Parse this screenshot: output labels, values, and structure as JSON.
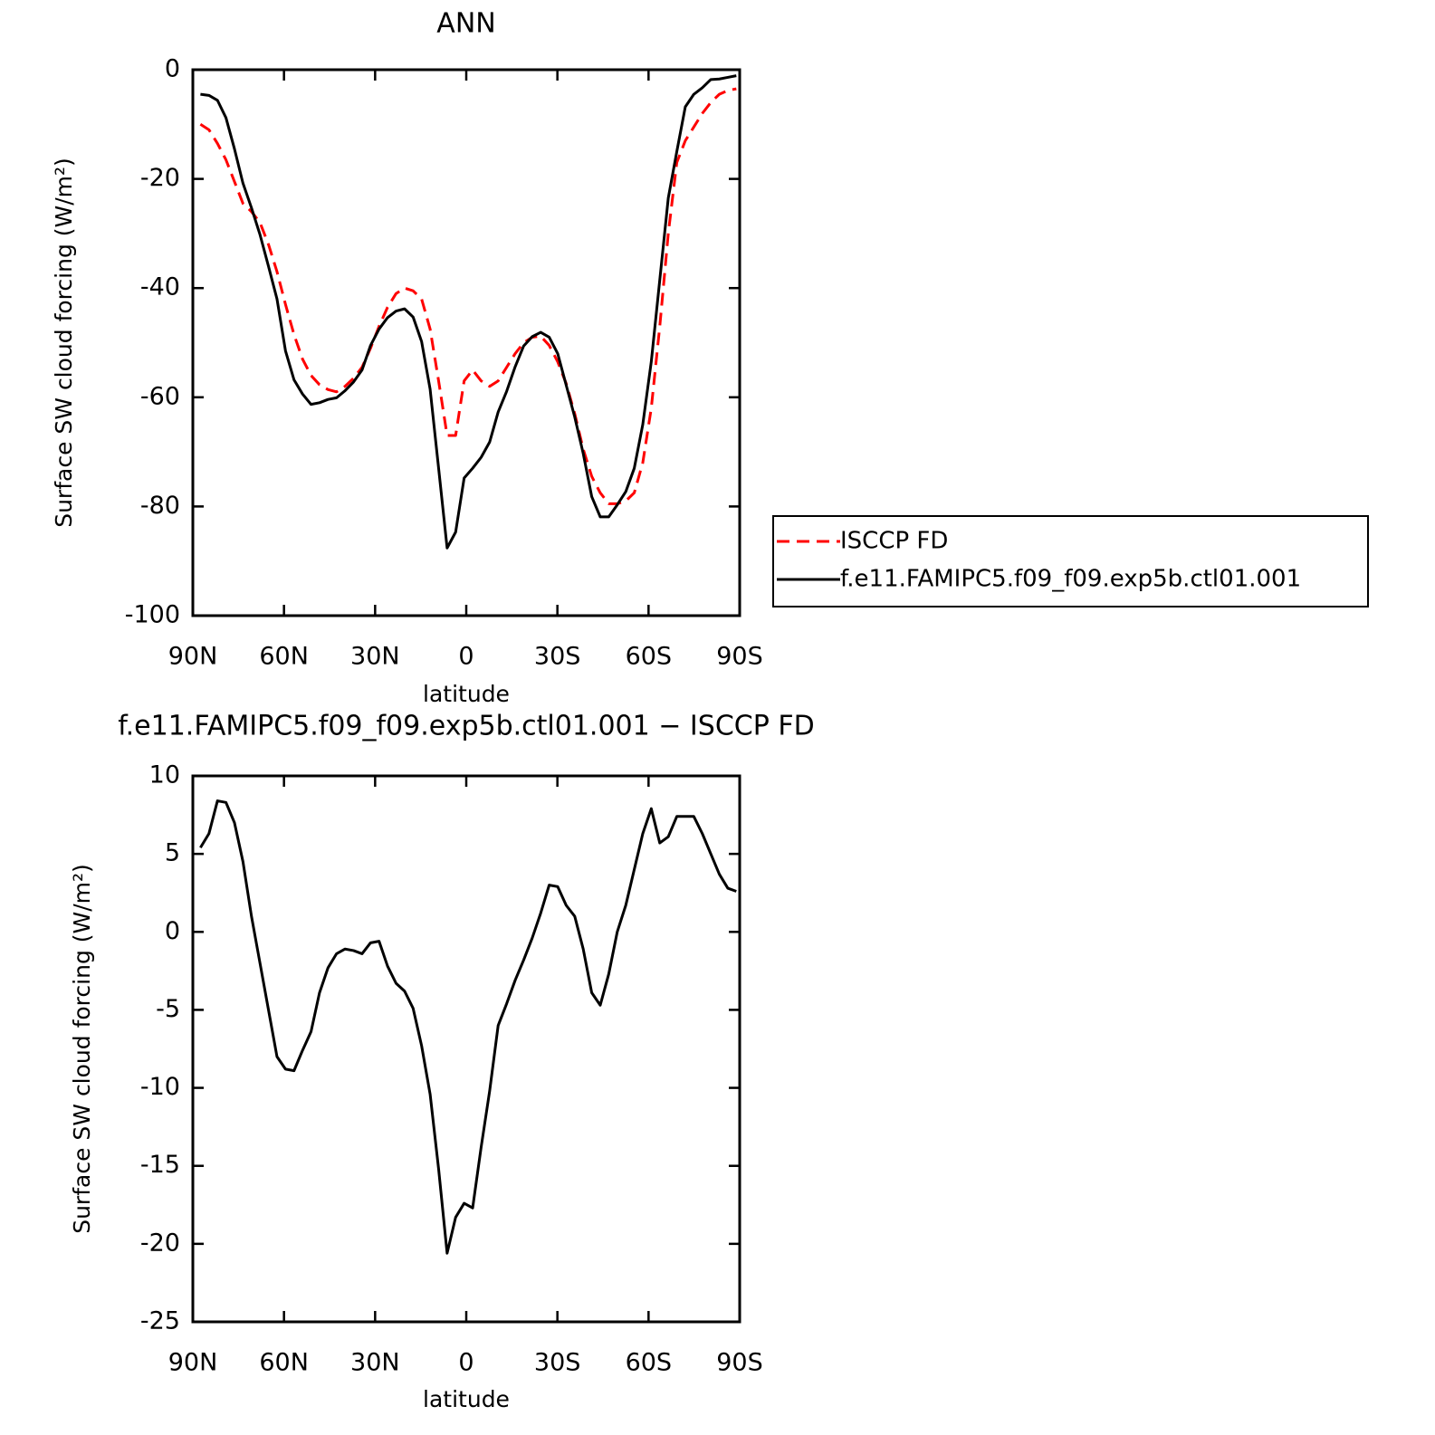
{
  "chart_data": [
    {
      "type": "line",
      "title": "ANN",
      "xlabel": "latitude",
      "ylabel": "Surface SW cloud forcing (W/m²)",
      "xlim": [
        90,
        -90
      ],
      "ylim": [
        0,
        -100
      ],
      "xticks": [
        {
          "value": 90,
          "label": "90N"
        },
        {
          "value": 60,
          "label": "60N"
        },
        {
          "value": 30,
          "label": "30N"
        },
        0,
        {
          "value": -30,
          "label": "30S"
        },
        {
          "value": -60,
          "label": "60S"
        },
        {
          "value": -90,
          "label": "90S"
        }
      ],
      "yticks": [
        0,
        -20,
        -40,
        -60,
        -80,
        -100
      ],
      "legend": "right",
      "x": [
        87.5,
        84.7,
        81.9,
        79.1,
        76.3,
        73.5,
        70.7,
        67.9,
        65.1,
        62.3,
        59.5,
        56.7,
        53.9,
        51.1,
        48.3,
        45.5,
        42.7,
        39.9,
        37.1,
        34.3,
        31.5,
        28.7,
        25.9,
        23.1,
        20.3,
        17.5,
        14.7,
        11.9,
        9.1,
        6.3,
        3.5,
        0.7,
        -2.1,
        -4.9,
        -7.7,
        -10.5,
        -13.3,
        -16.1,
        -18.9,
        -21.7,
        -24.5,
        -27.3,
        -30.1,
        -32.9,
        -35.7,
        -38.5,
        -41.3,
        -44.1,
        -46.9,
        -49.7,
        -52.5,
        -55.3,
        -58.1,
        -60.9,
        -63.7,
        -66.5,
        -69.3,
        -72.1,
        -74.9,
        -77.7,
        -80.5,
        -83.3,
        -86.1,
        -88.9
      ],
      "series": [
        {
          "name": "ISCCP FD",
          "color": "#ff0000",
          "dashed": true,
          "values": [
            -10,
            -11,
            -13.5,
            -16.5,
            -20.5,
            -24.5,
            -26,
            -28,
            -32,
            -37,
            -43,
            -48.5,
            -53,
            -56,
            -57.7,
            -58.6,
            -59,
            -58,
            -56.5,
            -54.5,
            -51,
            -47,
            -43.5,
            -41,
            -40,
            -40.5,
            -42,
            -47.5,
            -57,
            -67,
            -67,
            -57,
            -55,
            -57,
            -58,
            -57,
            -54.5,
            -52,
            -50,
            -49,
            -48.8,
            -50.5,
            -53.5,
            -57.5,
            -63,
            -69.5,
            -74.5,
            -77.5,
            -79.5,
            -79.5,
            -79,
            -77.5,
            -72,
            -62,
            -47,
            -30,
            -17,
            -13,
            -10.5,
            -8,
            -6,
            -4.5,
            -3.8,
            -3.5
          ]
        },
        {
          "name": "f.e11.FAMIPC5.f09_f09.exp5b.ctl01.001",
          "color": "#000000",
          "dashed": false,
          "values": [
            -4.5,
            -4.7,
            -5.6,
            -8.8,
            -14.5,
            -20.8,
            -25.3,
            -30.2,
            -36,
            -42,
            -51.5,
            -56.8,
            -59.4,
            -61.3,
            -61,
            -60.4,
            -60.1,
            -58.8,
            -57.2,
            -55,
            -50.5,
            -47.5,
            -45.4,
            -44.2,
            -43.8,
            -45.3,
            -49.8,
            -58.5,
            -73,
            -87.6,
            -84.7,
            -74.8,
            -73,
            -71,
            -68.2,
            -62.7,
            -58.9,
            -54.4,
            -50.6,
            -48.9,
            -48.1,
            -49,
            -52,
            -57.8,
            -63.6,
            -70.3,
            -78.2,
            -81.9,
            -81.9,
            -79.7,
            -77.3,
            -73,
            -65,
            -53.5,
            -38.5,
            -23.5,
            -15,
            -6.8,
            -4.5,
            -3.3,
            -1.8,
            -1.7,
            -1.4,
            -1.1
          ]
        }
      ]
    },
    {
      "type": "line",
      "title": "f.e11.FAMIPC5.f09_f09.exp5b.ctl01.001 − ISCCP FD",
      "xlabel": "latitude",
      "ylabel": "Surface SW cloud forcing (W/m²)",
      "xlim": [
        90,
        -90
      ],
      "ylim": [
        10,
        -25
      ],
      "xticks": [
        {
          "value": 90,
          "label": "90N"
        },
        {
          "value": 60,
          "label": "60N"
        },
        {
          "value": 30,
          "label": "30N"
        },
        0,
        {
          "value": -30,
          "label": "30S"
        },
        {
          "value": -60,
          "label": "60S"
        },
        {
          "value": -90,
          "label": "90S"
        }
      ],
      "yticks": [
        10,
        5,
        0,
        -5,
        -10,
        -15,
        -20,
        -25
      ],
      "x": [
        87.5,
        84.7,
        81.9,
        79.1,
        76.3,
        73.5,
        70.7,
        67.9,
        65.1,
        62.3,
        59.5,
        56.7,
        53.9,
        51.1,
        48.3,
        45.5,
        42.7,
        39.9,
        37.1,
        34.3,
        31.5,
        28.7,
        25.9,
        23.1,
        20.3,
        17.5,
        14.7,
        11.9,
        9.1,
        6.3,
        3.5,
        0.7,
        -2.1,
        -4.9,
        -7.7,
        -10.5,
        -13.3,
        -16.1,
        -18.9,
        -21.7,
        -24.5,
        -27.3,
        -30.1,
        -32.9,
        -35.7,
        -38.5,
        -41.3,
        -44.1,
        -46.9,
        -49.7,
        -52.5,
        -55.3,
        -58.1,
        -60.9,
        -63.7,
        -66.5,
        -69.3,
        -72.1,
        -74.9,
        -77.7,
        -80.5,
        -83.3,
        -86.1,
        -88.9
      ],
      "series": [
        {
          "color": "#000000",
          "dashed": false,
          "values": [
            5.4,
            6.3,
            8.4,
            8.3,
            7.0,
            4.5,
            1,
            -2,
            -5,
            -8,
            -8.8,
            -8.9,
            -7.6,
            -6.4,
            -3.9,
            -2.3,
            -1.4,
            -1.1,
            -1.2,
            -1.4,
            -0.7,
            -0.6,
            -2.2,
            -3.3,
            -3.8,
            -4.9,
            -7.3,
            -10.4,
            -15.2,
            -20.6,
            -18.3,
            -17.4,
            -17.7,
            -13.8,
            -10.2,
            -6,
            -4.6,
            -3.1,
            -1.8,
            -0.4,
            1.2,
            3,
            2.9,
            1.7,
            1,
            -1.1,
            -3.9,
            -4.7,
            -2.7,
            0,
            1.7,
            4,
            6.3,
            7.9,
            5.7,
            6.1,
            7.4,
            7.4,
            7.4,
            6.3,
            5,
            3.7,
            2.8,
            2.6
          ]
        }
      ]
    }
  ]
}
